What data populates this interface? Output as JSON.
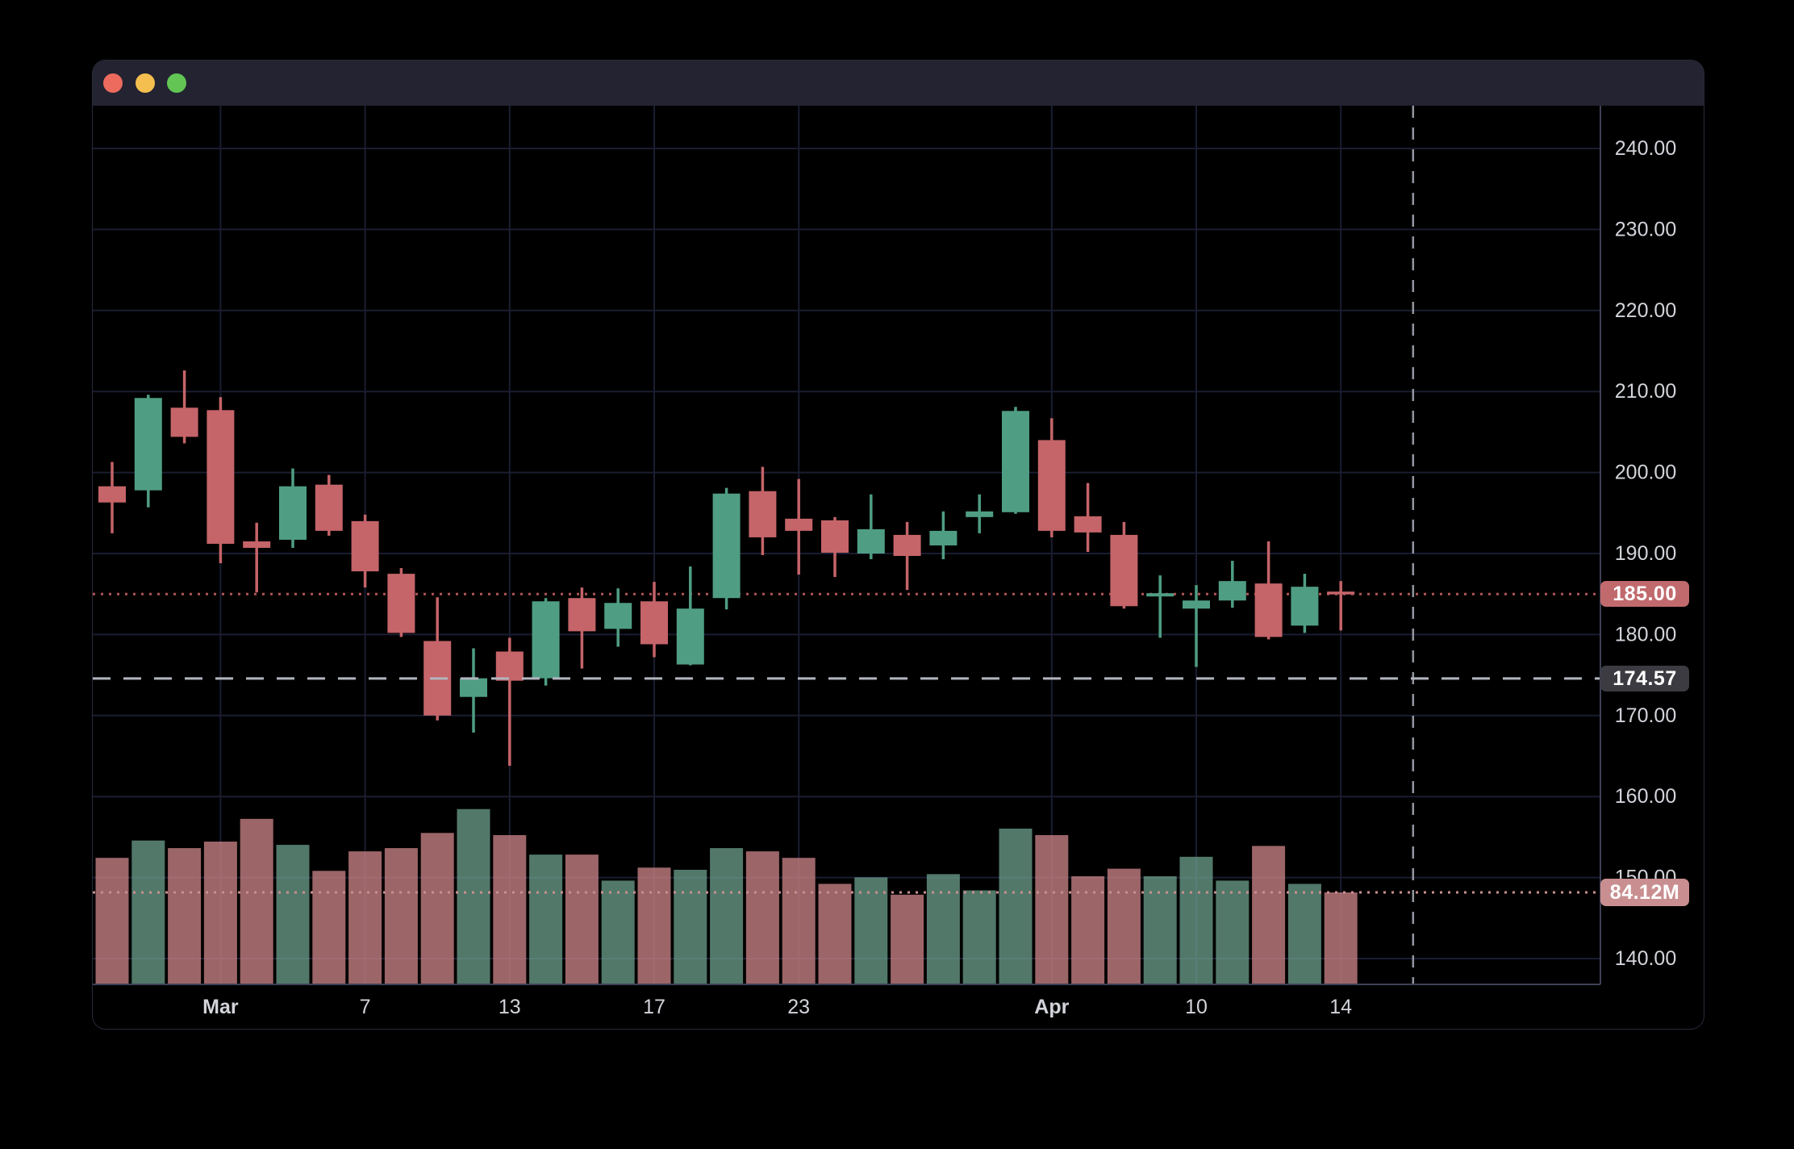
{
  "window": {
    "traffic_lights": [
      {
        "name": "close",
        "color": "#ec6a5e"
      },
      {
        "name": "minimize",
        "color": "#f5bf4f"
      },
      {
        "name": "fullscreen",
        "color": "#62c554"
      }
    ],
    "titlebar_color": "#232331"
  },
  "colors": {
    "background": "#000000",
    "candle_up": "#4f9e83",
    "candle_down": "#c56469",
    "volume_up": "rgba(110,160,142,0.75)",
    "volume_down": "rgba(200,130,133,0.78)",
    "grid": "#1a1d31",
    "axis_text": "#d2d4da",
    "separator": "#3e4156",
    "crosshair": "#9396a0",
    "last_price_line": "#b05555",
    "last_volume_line": "#c98f90",
    "badge_last_price_bg": "#c16a6e",
    "badge_crosshair_bg": "#3b3b41",
    "badge_volume_bg": "#c98f90"
  },
  "badges": {
    "last_price": "185.00",
    "crosshair_price": "174.57",
    "last_volume": "84.12M"
  },
  "price_axis": {
    "tick_values": [
      240,
      230,
      220,
      210,
      200,
      190,
      180,
      170,
      160,
      150,
      140
    ],
    "tick_labels": [
      "240.00",
      "230.00",
      "220.00",
      "210.00",
      "200.00",
      "190.00",
      "180.00",
      "170.00",
      "160.00",
      "150.00",
      "140.00"
    ]
  },
  "time_axis": {
    "labels": [
      {
        "text": "Mar",
        "bar": 3,
        "bold": true
      },
      {
        "text": "7",
        "bar": 7,
        "bold": false
      },
      {
        "text": "13",
        "bar": 11,
        "bold": false
      },
      {
        "text": "17",
        "bar": 15,
        "bold": false
      },
      {
        "text": "23",
        "bar": 19,
        "bold": false
      },
      {
        "text": "Apr",
        "bar": 26,
        "bold": true
      },
      {
        "text": "10",
        "bar": 30,
        "bold": false
      },
      {
        "text": "14",
        "bar": 34,
        "bold": false
      }
    ]
  },
  "chart_data": {
    "type": "candlestick",
    "panes": [
      "price",
      "volume-overlay"
    ],
    "grid": true,
    "price_axis_side": "right",
    "visible_price_range": [
      136.6,
      245.3
    ],
    "last_price": 185.0,
    "crosshair_price": 174.57,
    "crosshair_bar_index": 36,
    "volume_unit": "M",
    "last_volume": 84.12,
    "gridline_bar_indexes": [
      3,
      7,
      11,
      15,
      19,
      26,
      30,
      34
    ],
    "candles": [
      {
        "o": 198.3,
        "h": 201.3,
        "l": 192.5,
        "c": 196.3,
        "v": 116
      },
      {
        "o": 197.8,
        "h": 209.6,
        "l": 195.7,
        "c": 209.2,
        "v": 132
      },
      {
        "o": 208.0,
        "h": 212.6,
        "l": 203.6,
        "c": 204.4,
        "v": 125
      },
      {
        "o": 207.7,
        "h": 209.3,
        "l": 188.8,
        "c": 191.2,
        "v": 131
      },
      {
        "o": 191.5,
        "h": 193.8,
        "l": 185.2,
        "c": 190.7,
        "v": 152
      },
      {
        "o": 191.7,
        "h": 200.5,
        "l": 190.7,
        "c": 198.3,
        "v": 128
      },
      {
        "o": 198.5,
        "h": 199.7,
        "l": 192.2,
        "c": 192.8,
        "v": 104
      },
      {
        "o": 194.0,
        "h": 194.8,
        "l": 185.8,
        "c": 187.8,
        "v": 122
      },
      {
        "o": 187.5,
        "h": 188.2,
        "l": 179.7,
        "c": 180.2,
        "v": 125
      },
      {
        "o": 179.2,
        "h": 184.6,
        "l": 169.4,
        "c": 170.0,
        "v": 139
      },
      {
        "o": 172.3,
        "h": 178.3,
        "l": 167.9,
        "c": 174.6,
        "v": 161
      },
      {
        "o": 177.9,
        "h": 179.6,
        "l": 163.8,
        "c": 174.3,
        "v": 137
      },
      {
        "o": 174.6,
        "h": 184.5,
        "l": 173.7,
        "c": 184.1,
        "v": 119
      },
      {
        "o": 184.5,
        "h": 185.8,
        "l": 175.8,
        "c": 180.4,
        "v": 119
      },
      {
        "o": 180.7,
        "h": 185.7,
        "l": 178.5,
        "c": 183.9,
        "v": 95
      },
      {
        "o": 184.1,
        "h": 186.5,
        "l": 177.2,
        "c": 178.8,
        "v": 107
      },
      {
        "o": 176.3,
        "h": 188.4,
        "l": 176.2,
        "c": 183.2,
        "v": 105
      },
      {
        "o": 184.5,
        "h": 198.1,
        "l": 183.1,
        "c": 197.4,
        "v": 125
      },
      {
        "o": 197.7,
        "h": 200.7,
        "l": 189.8,
        "c": 192.0,
        "v": 122
      },
      {
        "o": 194.3,
        "h": 199.2,
        "l": 187.4,
        "c": 192.8,
        "v": 116
      },
      {
        "o": 194.1,
        "h": 194.5,
        "l": 187.1,
        "c": 190.1,
        "v": 92
      },
      {
        "o": 190.0,
        "h": 197.3,
        "l": 189.3,
        "c": 193.0,
        "v": 98
      },
      {
        "o": 192.3,
        "h": 193.9,
        "l": 185.5,
        "c": 189.7,
        "v": 82
      },
      {
        "o": 191.0,
        "h": 195.2,
        "l": 189.3,
        "c": 192.8,
        "v": 101
      },
      {
        "o": 194.5,
        "h": 197.3,
        "l": 192.5,
        "c": 195.2,
        "v": 86
      },
      {
        "o": 195.1,
        "h": 208.1,
        "l": 194.9,
        "c": 207.6,
        "v": 143
      },
      {
        "o": 204.0,
        "h": 206.7,
        "l": 192.0,
        "c": 192.8,
        "v": 137
      },
      {
        "o": 194.6,
        "h": 198.7,
        "l": 190.2,
        "c": 192.6,
        "v": 99
      },
      {
        "o": 192.3,
        "h": 193.9,
        "l": 183.2,
        "c": 183.5,
        "v": 106
      },
      {
        "o": 184.7,
        "h": 187.3,
        "l": 179.6,
        "c": 185.1,
        "v": 99
      },
      {
        "o": 183.2,
        "h": 186.1,
        "l": 176.0,
        "c": 184.2,
        "v": 117
      },
      {
        "o": 184.2,
        "h": 189.1,
        "l": 183.3,
        "c": 186.6,
        "v": 95
      },
      {
        "o": 186.3,
        "h": 191.5,
        "l": 179.4,
        "c": 179.7,
        "v": 127
      },
      {
        "o": 181.1,
        "h": 187.5,
        "l": 180.2,
        "c": 185.9,
        "v": 92
      },
      {
        "o": 185.3,
        "h": 186.6,
        "l": 180.5,
        "c": 185.0,
        "v": 84.12
      }
    ]
  }
}
